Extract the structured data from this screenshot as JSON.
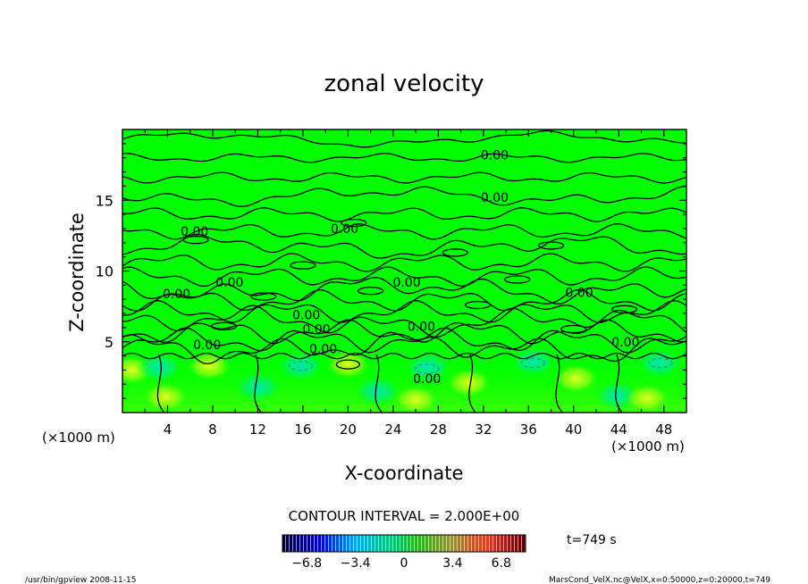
{
  "chart_data": {
    "type": "heatmap",
    "title": "zonal velocity",
    "xlabel": "X-coordinate",
    "ylabel": "Z-coordinate",
    "x_unit_left": "(×1000 m)",
    "x_unit_right": "(×1000 m)",
    "xlim": [
      0,
      50
    ],
    "ylim": [
      0,
      20
    ],
    "x_ticks": [
      "4",
      "8",
      "12",
      "16",
      "20",
      "24",
      "28",
      "32",
      "36",
      "40",
      "44",
      "48"
    ],
    "x_tick_values": [
      4,
      8,
      12,
      16,
      20,
      24,
      28,
      32,
      36,
      40,
      44,
      48
    ],
    "y_ticks": [
      "5",
      "10",
      "15"
    ],
    "y_tick_values": [
      5,
      10,
      15
    ],
    "contour_interval_text": "CONTOUR INTERVAL = 2.000E+00",
    "contour_labels": [
      {
        "text": "0.00",
        "x": 33,
        "y": 18.2
      },
      {
        "text": "0.00",
        "x": 33,
        "y": 15.2
      },
      {
        "text": "0.00",
        "x": 6.4,
        "y": 12.8
      },
      {
        "text": "0.00",
        "x": 19.7,
        "y": 13.0
      },
      {
        "text": "0.00",
        "x": 9.5,
        "y": 9.2
      },
      {
        "text": "0.00",
        "x": 25.2,
        "y": 9.2
      },
      {
        "text": "0.00",
        "x": 40.5,
        "y": 8.5
      },
      {
        "text": "0.00",
        "x": 4.8,
        "y": 8.4
      },
      {
        "text": "0.00",
        "x": 16.3,
        "y": 6.9
      },
      {
        "text": "0.00",
        "x": 17.2,
        "y": 5.9
      },
      {
        "text": "0.00",
        "x": 26.5,
        "y": 6.1
      },
      {
        "text": "0.00",
        "x": 7.5,
        "y": 4.8
      },
      {
        "text": "0.00",
        "x": 17.8,
        "y": 4.5
      },
      {
        "text": "0.00",
        "x": 44.6,
        "y": 5.0
      },
      {
        "text": "0.00",
        "x": 27.0,
        "y": 2.4
      }
    ],
    "colorbar": {
      "ticks": [
        "−6.8",
        "−3.4",
        "0",
        "3.4",
        "6.8"
      ],
      "tick_values": [
        -6.8,
        -3.4,
        0,
        3.4,
        6.8
      ],
      "range": [
        -8.5,
        8.5
      ]
    },
    "time_label": "t=749 s",
    "footer_left": "/usr/bin/gpview   2008-11-15",
    "footer_right": "MarsCond_VelX.nc@VelX,x=0:50000,z=0:20000,t=749"
  },
  "colors": {
    "background": "#00ff00",
    "positive": "#ffff00",
    "negative": "#00e0d0",
    "contour": "#000000"
  }
}
